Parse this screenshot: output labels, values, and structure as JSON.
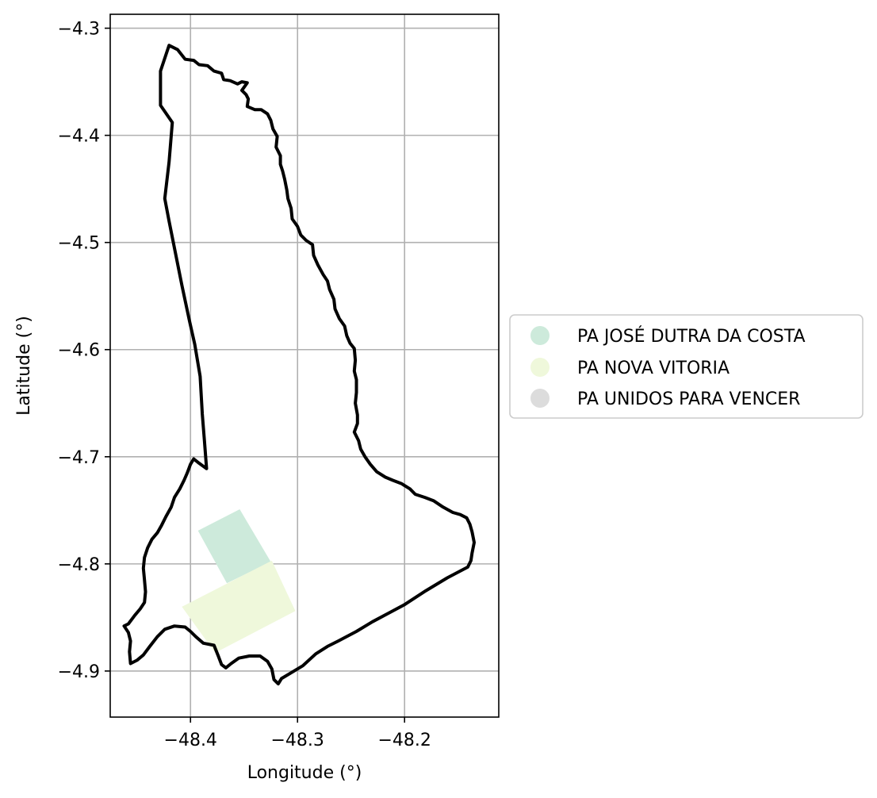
{
  "chart_data": {
    "type": "map",
    "xlabel": "Longitude (°)",
    "ylabel": "Latitude (°)",
    "xlim": [
      -48.475,
      -48.112
    ],
    "ylim": [
      -4.943,
      -4.287
    ],
    "grid": true,
    "legend_placement": "right-center",
    "x_ticks": [
      {
        "value": -48.4,
        "label": "−48.4"
      },
      {
        "value": -48.3,
        "label": "−48.3"
      },
      {
        "value": -48.2,
        "label": "−48.2"
      }
    ],
    "y_ticks": [
      {
        "value": -4.3,
        "label": "−4.3"
      },
      {
        "value": -4.4,
        "label": "−4.4"
      },
      {
        "value": -4.5,
        "label": "−4.5"
      },
      {
        "value": -4.6,
        "label": "−4.6"
      },
      {
        "value": -4.7,
        "label": "−4.7"
      },
      {
        "value": -4.8,
        "label": "−4.8"
      },
      {
        "value": -4.9,
        "label": "−4.9"
      }
    ],
    "boundary": {
      "color": "#000000",
      "coords": [
        [
          -48.42,
          -4.316
        ],
        [
          -48.412,
          -4.32
        ],
        [
          -48.405,
          -4.329
        ],
        [
          -48.397,
          -4.33
        ],
        [
          -48.392,
          -4.334
        ],
        [
          -48.384,
          -4.335
        ],
        [
          -48.378,
          -4.34
        ],
        [
          -48.371,
          -4.342
        ],
        [
          -48.369,
          -4.348
        ],
        [
          -48.363,
          -4.349
        ],
        [
          -48.356,
          -4.352
        ],
        [
          -48.352,
          -4.35
        ],
        [
          -48.347,
          -4.351
        ],
        [
          -48.352,
          -4.358
        ],
        [
          -48.348,
          -4.362
        ],
        [
          -48.346,
          -4.366
        ],
        [
          -48.347,
          -4.373
        ],
        [
          -48.34,
          -4.376
        ],
        [
          -48.334,
          -4.376
        ],
        [
          -48.328,
          -4.38
        ],
        [
          -48.325,
          -4.386
        ],
        [
          -48.323,
          -4.394
        ],
        [
          -48.319,
          -4.401
        ],
        [
          -48.32,
          -4.411
        ],
        [
          -48.316,
          -4.419
        ],
        [
          -48.316,
          -4.427
        ],
        [
          -48.314,
          -4.433
        ],
        [
          -48.312,
          -4.441
        ],
        [
          -48.31,
          -4.451
        ],
        [
          -48.309,
          -4.459
        ],
        [
          -48.306,
          -4.468
        ],
        [
          -48.305,
          -4.478
        ],
        [
          -48.3,
          -4.485
        ],
        [
          -48.297,
          -4.493
        ],
        [
          -48.292,
          -4.498
        ],
        [
          -48.286,
          -4.502
        ],
        [
          -48.285,
          -4.512
        ],
        [
          -48.281,
          -4.521
        ],
        [
          -48.276,
          -4.53
        ],
        [
          -48.272,
          -4.536
        ],
        [
          -48.27,
          -4.544
        ],
        [
          -48.266,
          -4.553
        ],
        [
          -48.265,
          -4.562
        ],
        [
          -48.261,
          -4.571
        ],
        [
          -48.256,
          -4.578
        ],
        [
          -48.254,
          -4.587
        ],
        [
          -48.251,
          -4.594
        ],
        [
          -48.247,
          -4.599
        ],
        [
          -48.246,
          -4.61
        ],
        [
          -48.247,
          -4.62
        ],
        [
          -48.245,
          -4.628
        ],
        [
          -48.245,
          -4.64
        ],
        [
          -48.246,
          -4.65
        ],
        [
          -48.244,
          -4.661
        ],
        [
          -48.244,
          -4.669
        ],
        [
          -48.247,
          -4.677
        ],
        [
          -48.243,
          -4.685
        ],
        [
          -48.241,
          -4.693
        ],
        [
          -48.237,
          -4.7
        ],
        [
          -48.232,
          -4.707
        ],
        [
          -48.226,
          -4.714
        ],
        [
          -48.218,
          -4.719
        ],
        [
          -48.211,
          -4.722
        ],
        [
          -48.203,
          -4.725
        ],
        [
          -48.195,
          -4.73
        ],
        [
          -48.19,
          -4.735
        ],
        [
          -48.181,
          -4.738
        ],
        [
          -48.173,
          -4.741
        ],
        [
          -48.164,
          -4.747
        ],
        [
          -48.155,
          -4.752
        ],
        [
          -48.148,
          -4.754
        ],
        [
          -48.142,
          -4.757
        ],
        [
          -48.139,
          -4.763
        ],
        [
          -48.137,
          -4.77
        ],
        [
          -48.135,
          -4.78
        ],
        [
          -48.137,
          -4.79
        ],
        [
          -48.138,
          -4.797
        ],
        [
          -48.141,
          -4.803
        ],
        [
          -48.16,
          -4.813
        ],
        [
          -48.18,
          -4.825
        ],
        [
          -48.2,
          -4.838
        ],
        [
          -48.215,
          -4.846
        ],
        [
          -48.23,
          -4.854
        ],
        [
          -48.245,
          -4.863
        ],
        [
          -48.262,
          -4.872
        ],
        [
          -48.272,
          -4.877
        ],
        [
          -48.283,
          -4.884
        ],
        [
          -48.295,
          -4.895
        ],
        [
          -48.305,
          -4.901
        ],
        [
          -48.315,
          -4.907
        ],
        [
          -48.318,
          -4.912
        ],
        [
          -48.322,
          -4.908
        ],
        [
          -48.324,
          -4.898
        ],
        [
          -48.328,
          -4.891
        ],
        [
          -48.335,
          -4.886
        ],
        [
          -48.345,
          -4.886
        ],
        [
          -48.355,
          -4.888
        ],
        [
          -48.362,
          -4.893
        ],
        [
          -48.367,
          -4.897
        ],
        [
          -48.371,
          -4.894
        ],
        [
          -48.374,
          -4.886
        ],
        [
          -48.378,
          -4.876
        ],
        [
          -48.388,
          -4.874
        ],
        [
          -48.395,
          -4.868
        ],
        [
          -48.4,
          -4.863
        ],
        [
          -48.405,
          -4.859
        ],
        [
          -48.415,
          -4.858
        ],
        [
          -48.424,
          -4.861
        ],
        [
          -48.431,
          -4.868
        ],
        [
          -48.438,
          -4.877
        ],
        [
          -48.444,
          -4.885
        ],
        [
          -48.45,
          -4.89
        ],
        [
          -48.456,
          -4.893
        ],
        [
          -48.457,
          -4.882
        ],
        [
          -48.456,
          -4.872
        ],
        [
          -48.458,
          -4.864
        ],
        [
          -48.462,
          -4.858
        ],
        [
          -48.458,
          -4.856
        ],
        [
          -48.452,
          -4.848
        ],
        [
          -48.447,
          -4.842
        ],
        [
          -48.443,
          -4.836
        ],
        [
          -48.442,
          -4.826
        ],
        [
          -48.443,
          -4.815
        ],
        [
          -48.444,
          -4.804
        ],
        [
          -48.443,
          -4.794
        ],
        [
          -48.44,
          -4.785
        ],
        [
          -48.436,
          -4.777
        ],
        [
          -48.431,
          -4.771
        ],
        [
          -48.427,
          -4.764
        ],
        [
          -48.423,
          -4.756
        ],
        [
          -48.418,
          -4.747
        ],
        [
          -48.415,
          -4.738
        ],
        [
          -48.41,
          -4.73
        ],
        [
          -48.406,
          -4.722
        ],
        [
          -48.403,
          -4.715
        ],
        [
          -48.4,
          -4.707
        ],
        [
          -48.397,
          -4.702
        ],
        [
          -48.392,
          -4.706
        ],
        [
          -48.385,
          -4.711
        ],
        [
          -48.387,
          -4.685
        ],
        [
          -48.389,
          -4.66
        ],
        [
          -48.391,
          -4.625
        ],
        [
          -48.396,
          -4.595
        ],
        [
          -48.401,
          -4.573
        ],
        [
          -48.408,
          -4.54
        ],
        [
          -48.414,
          -4.51
        ],
        [
          -48.42,
          -4.48
        ],
        [
          -48.424,
          -4.459
        ],
        [
          -48.42,
          -4.425
        ],
        [
          -48.417,
          -4.388
        ],
        [
          -48.428,
          -4.372
        ],
        [
          -48.428,
          -4.34
        ],
        [
          -48.42,
          -4.316
        ]
      ]
    },
    "regions": [
      {
        "name": "PA JOSÉ DUTRA DA COSTA",
        "color": "#cdeadb",
        "coords": [
          [
            -48.393,
            -4.769
          ],
          [
            -48.354,
            -4.749
          ],
          [
            -48.325,
            -4.798
          ],
          [
            -48.366,
            -4.818
          ]
        ]
      },
      {
        "name": "PA NOVA VITORIA",
        "color": "#eff8db",
        "coords": [
          [
            -48.408,
            -4.84
          ],
          [
            -48.324,
            -4.797
          ],
          [
            -48.302,
            -4.844
          ],
          [
            -48.377,
            -4.883
          ]
        ]
      },
      {
        "name": "PA UNIDOS PARA VENCER",
        "color": "#dcdcdc",
        "coords": []
      }
    ]
  }
}
